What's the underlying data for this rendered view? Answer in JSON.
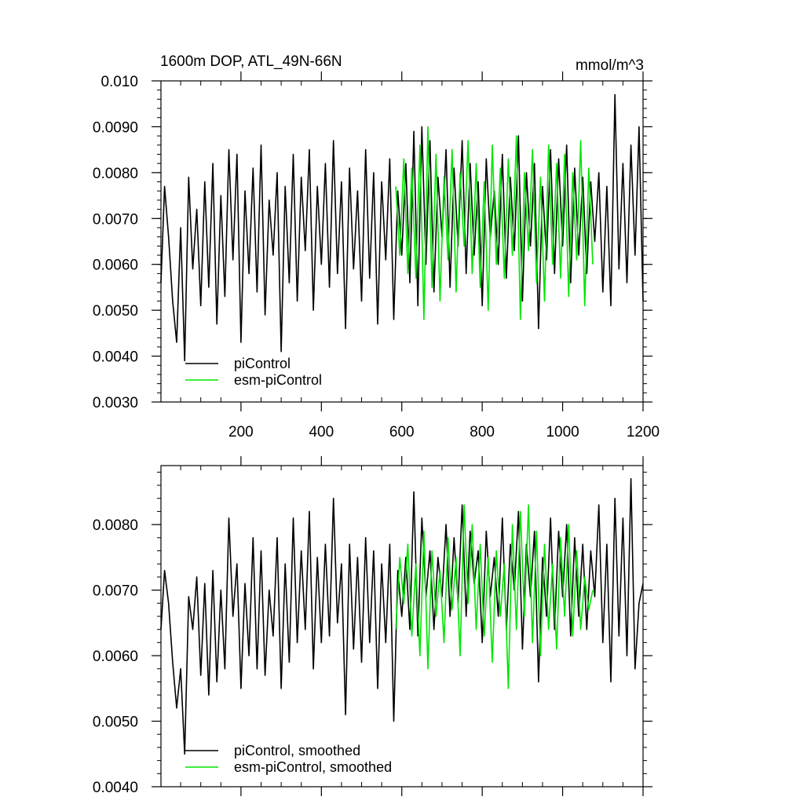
{
  "figure": {
    "title": "1600m DOP, ATL_49N-66N",
    "units": "mmol/m^3"
  },
  "chart_data": [
    {
      "type": "line",
      "title": "1600m DOP, ATL_49N-66N",
      "units_label": "mmol/m^3",
      "xlabel": "",
      "ylabel": "",
      "xlim": [
        1,
        1200
      ],
      "ylim": [
        0.003,
        0.01
      ],
      "x_ticks": [
        200,
        400,
        600,
        800,
        1000,
        1200
      ],
      "x_tick_labels": [
        "200",
        "400",
        "600",
        "800",
        "1000",
        "1200"
      ],
      "y_ticks": [
        0.003,
        0.004,
        0.005,
        0.006,
        0.007,
        0.008,
        0.009,
        0.01
      ],
      "y_tick_labels": [
        "0.0030",
        "0.0040",
        "0.0050",
        "0.0060",
        "0.0070",
        "0.0080",
        "0.0090",
        "0.010"
      ],
      "grid": false,
      "legend_position": "bottom-left",
      "series": [
        {
          "name": "piControl",
          "color": "#000000",
          "x": [
            1,
            10,
            20,
            30,
            40,
            50,
            60,
            70,
            80,
            90,
            100,
            110,
            120,
            130,
            140,
            150,
            160,
            170,
            180,
            190,
            200,
            210,
            220,
            230,
            240,
            250,
            260,
            270,
            280,
            290,
            300,
            310,
            320,
            330,
            340,
            350,
            360,
            370,
            380,
            390,
            400,
            410,
            420,
            430,
            440,
            450,
            460,
            470,
            480,
            490,
            500,
            510,
            520,
            530,
            540,
            550,
            560,
            570,
            580,
            590,
            600,
            610,
            620,
            630,
            640,
            650,
            660,
            670,
            680,
            690,
            700,
            710,
            720,
            730,
            740,
            750,
            760,
            770,
            780,
            790,
            800,
            810,
            820,
            830,
            840,
            850,
            860,
            870,
            880,
            890,
            900,
            910,
            920,
            930,
            940,
            950,
            960,
            970,
            980,
            990,
            1000,
            1010,
            1020,
            1030,
            1040,
            1050,
            1060,
            1070,
            1080,
            1090,
            1100,
            1110,
            1120,
            1130,
            1140,
            1150,
            1160,
            1170,
            1180,
            1190,
            1200
          ],
          "values": [
            0.0056,
            0.0077,
            0.0066,
            0.0052,
            0.0043,
            0.0068,
            0.0039,
            0.0079,
            0.0059,
            0.0072,
            0.0051,
            0.0078,
            0.0055,
            0.0082,
            0.0047,
            0.0075,
            0.0053,
            0.0085,
            0.0061,
            0.0084,
            0.0043,
            0.0076,
            0.0058,
            0.0081,
            0.0054,
            0.0086,
            0.0049,
            0.0074,
            0.0062,
            0.008,
            0.0041,
            0.0077,
            0.0056,
            0.0084,
            0.0052,
            0.0079,
            0.0063,
            0.0085,
            0.005,
            0.0077,
            0.006,
            0.0082,
            0.0055,
            0.0087,
            0.0058,
            0.0078,
            0.0046,
            0.0081,
            0.0059,
            0.0076,
            0.0052,
            0.0085,
            0.0057,
            0.008,
            0.0047,
            0.0078,
            0.0061,
            0.0083,
            0.0048,
            0.0076,
            0.0062,
            0.0082,
            0.0056,
            0.0089,
            0.0051,
            0.009,
            0.006,
            0.0087,
            0.0054,
            0.0079,
            0.0066,
            0.0085,
            0.0055,
            0.0081,
            0.0064,
            0.0087,
            0.0058,
            0.0082,
            0.0062,
            0.0078,
            0.0051,
            0.0083,
            0.0066,
            0.0076,
            0.006,
            0.0084,
            0.0057,
            0.0079,
            0.0063,
            0.0088,
            0.0052,
            0.008,
            0.0064,
            0.0082,
            0.0046,
            0.0077,
            0.0061,
            0.0085,
            0.0058,
            0.0083,
            0.0064,
            0.0086,
            0.0056,
            0.0081,
            0.0062,
            0.0079,
            0.0058,
            0.0078,
            0.0065,
            0.008,
            0.0054,
            0.0077,
            0.0051,
            0.0097,
            0.0059,
            0.0082,
            0.0056,
            0.0086,
            0.0062,
            0.009,
            0.0052
          ]
        },
        {
          "name": "esm-piControl",
          "color": "#00e600",
          "x": [
            585,
            595,
            605,
            615,
            625,
            635,
            645,
            655,
            665,
            675,
            685,
            695,
            705,
            715,
            725,
            735,
            745,
            755,
            765,
            775,
            785,
            795,
            805,
            815,
            825,
            835,
            845,
            855,
            865,
            875,
            885,
            895,
            905,
            915,
            925,
            935,
            945,
            955,
            965,
            975,
            985,
            995,
            1005,
            1015,
            1025,
            1035,
            1045,
            1055,
            1065,
            1075
          ],
          "values": [
            0.0077,
            0.0062,
            0.0083,
            0.0058,
            0.0081,
            0.0057,
            0.0086,
            0.0048,
            0.009,
            0.0055,
            0.0084,
            0.0052,
            0.0079,
            0.0061,
            0.0085,
            0.0054,
            0.008,
            0.0064,
            0.0087,
            0.0058,
            0.0082,
            0.0055,
            0.0078,
            0.005,
            0.0086,
            0.006,
            0.0081,
            0.0057,
            0.0083,
            0.0062,
            0.0088,
            0.0048,
            0.008,
            0.0063,
            0.0085,
            0.0056,
            0.0079,
            0.0052,
            0.0086,
            0.006,
            0.0082,
            0.0057,
            0.0084,
            0.0053,
            0.008,
            0.0061,
            0.0087,
            0.0051,
            0.0081,
            0.006
          ]
        }
      ]
    },
    {
      "type": "line",
      "title": "",
      "xlabel": "",
      "ylabel": "",
      "xlim": [
        1,
        1200
      ],
      "ylim": [
        0.004,
        0.0089
      ],
      "x_ticks": [
        200,
        400,
        600,
        800,
        1000,
        1200
      ],
      "x_tick_labels": [],
      "y_ticks": [
        0.004,
        0.005,
        0.006,
        0.007,
        0.008
      ],
      "y_tick_labels": [
        "0.0040",
        "0.0050",
        "0.0060",
        "0.0070",
        "0.0080"
      ],
      "grid": false,
      "legend_position": "bottom-left",
      "series": [
        {
          "name": "piControl, smoothed",
          "color": "#000000",
          "x": [
            1,
            10,
            20,
            30,
            40,
            50,
            60,
            70,
            80,
            90,
            100,
            110,
            120,
            130,
            140,
            150,
            160,
            170,
            180,
            190,
            200,
            210,
            220,
            230,
            240,
            250,
            260,
            270,
            280,
            290,
            300,
            310,
            320,
            330,
            340,
            350,
            360,
            370,
            380,
            390,
            400,
            410,
            420,
            430,
            440,
            450,
            460,
            470,
            480,
            490,
            500,
            510,
            520,
            530,
            540,
            550,
            560,
            570,
            580,
            590,
            600,
            610,
            620,
            630,
            640,
            650,
            660,
            670,
            680,
            690,
            700,
            710,
            720,
            730,
            740,
            750,
            760,
            770,
            780,
            790,
            800,
            810,
            820,
            830,
            840,
            850,
            860,
            870,
            880,
            890,
            900,
            910,
            920,
            930,
            940,
            950,
            960,
            970,
            980,
            990,
            1000,
            1010,
            1020,
            1030,
            1040,
            1050,
            1060,
            1070,
            1080,
            1090,
            1100,
            1110,
            1120,
            1130,
            1140,
            1150,
            1160,
            1170,
            1180,
            1190,
            1200
          ],
          "values": [
            0.0064,
            0.0073,
            0.0068,
            0.0059,
            0.0052,
            0.0058,
            0.0045,
            0.0069,
            0.0064,
            0.0072,
            0.0057,
            0.0071,
            0.0054,
            0.0073,
            0.0056,
            0.007,
            0.0058,
            0.0081,
            0.0066,
            0.0074,
            0.0055,
            0.0071,
            0.006,
            0.0078,
            0.0058,
            0.0076,
            0.0057,
            0.007,
            0.0063,
            0.0078,
            0.0055,
            0.0074,
            0.0059,
            0.0081,
            0.0062,
            0.0076,
            0.0064,
            0.0082,
            0.0058,
            0.0075,
            0.0062,
            0.0077,
            0.0063,
            0.0084,
            0.0065,
            0.0074,
            0.0051,
            0.0077,
            0.0061,
            0.0075,
            0.0059,
            0.0078,
            0.0062,
            0.0076,
            0.0055,
            0.0074,
            0.0062,
            0.0077,
            0.005,
            0.0073,
            0.0066,
            0.0075,
            0.0064,
            0.0085,
            0.0063,
            0.0081,
            0.0069,
            0.0076,
            0.0064,
            0.0075,
            0.0069,
            0.008,
            0.0066,
            0.0078,
            0.0068,
            0.0083,
            0.0066,
            0.0079,
            0.0071,
            0.0076,
            0.0062,
            0.0079,
            0.0069,
            0.0075,
            0.0066,
            0.0081,
            0.0064,
            0.0077,
            0.007,
            0.0082,
            0.0061,
            0.0077,
            0.0069,
            0.0079,
            0.0056,
            0.0075,
            0.0066,
            0.0081,
            0.0064,
            0.0079,
            0.0069,
            0.008,
            0.0063,
            0.0078,
            0.0066,
            0.0077,
            0.0064,
            0.0076,
            0.0069,
            0.0083,
            0.0062,
            0.0077,
            0.0056,
            0.0084,
            0.0063,
            0.0081,
            0.006,
            0.0087,
            0.0058,
            0.0068,
            0.0071
          ]
        },
        {
          "name": "esm-piControl, smoothed",
          "color": "#00e600",
          "x": [
            585,
            595,
            605,
            615,
            625,
            635,
            645,
            655,
            665,
            675,
            685,
            695,
            705,
            715,
            725,
            735,
            745,
            755,
            765,
            775,
            785,
            795,
            805,
            815,
            825,
            835,
            845,
            855,
            865,
            875,
            885,
            895,
            905,
            915,
            925,
            935,
            945,
            955,
            965,
            975,
            985,
            995,
            1005,
            1015,
            1025,
            1035,
            1045,
            1055,
            1065,
            1075
          ],
          "values": [
            0.0064,
            0.0075,
            0.0068,
            0.0077,
            0.0063,
            0.0074,
            0.006,
            0.0079,
            0.0058,
            0.0076,
            0.0066,
            0.0073,
            0.0062,
            0.0078,
            0.0067,
            0.0075,
            0.006,
            0.0083,
            0.0068,
            0.008,
            0.0064,
            0.0077,
            0.0063,
            0.0075,
            0.0059,
            0.0076,
            0.0066,
            0.0074,
            0.0055,
            0.008,
            0.0064,
            0.0082,
            0.0066,
            0.0083,
            0.0062,
            0.0079,
            0.006,
            0.0077,
            0.0064,
            0.0074,
            0.0061,
            0.0078,
            0.0066,
            0.008,
            0.0063,
            0.0076,
            0.0064,
            0.0072,
            0.0067,
            0.007
          ]
        }
      ]
    }
  ]
}
